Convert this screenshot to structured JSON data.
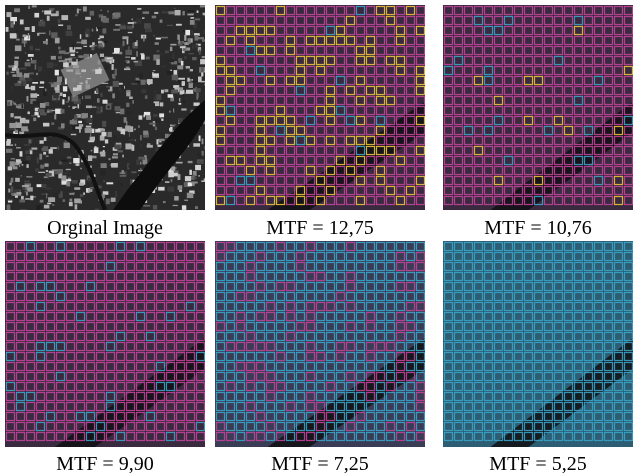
{
  "figure": {
    "panels": [
      {
        "id": "original",
        "caption": "Orginal Image",
        "kind": "satellite-photo"
      },
      {
        "id": "mtf-12-75",
        "caption": "MTF = 12,75",
        "kind": "grid-overlay",
        "palette": {
          "hot": "#e8c23a",
          "mid": "#c2429a",
          "cool": "#3aa3c8"
        },
        "mix": {
          "hot": 0.3,
          "cool": 0.05
        }
      },
      {
        "id": "mtf-10-76",
        "caption": "MTF = 10,76",
        "kind": "grid-overlay",
        "palette": {
          "hot": "#e8c23a",
          "mid": "#c2429a",
          "cool": "#3aa3c8"
        },
        "mix": {
          "hot": 0.06,
          "cool": 0.05
        }
      },
      {
        "id": "mtf-9-90",
        "caption": "MTF = 9,90",
        "kind": "grid-overlay",
        "palette": {
          "hot": "#e8c23a",
          "mid": "#c2429a",
          "cool": "#3aa3c8"
        },
        "mix": {
          "hot": 0.0,
          "cool": 0.12
        }
      },
      {
        "id": "mtf-7-25",
        "caption": "MTF = 7,25",
        "kind": "grid-overlay",
        "palette": {
          "hot": "#e8c23a",
          "mid": "#c2429a",
          "cool": "#3aa3c8"
        },
        "mix": {
          "hot": 0.0,
          "cool": 0.72
        }
      },
      {
        "id": "mtf-5-25",
        "caption": "MTF = 5,25",
        "kind": "grid-overlay",
        "palette": {
          "hot": "#e8c23a",
          "mid": "#c2429a",
          "cool": "#3aa3c8"
        },
        "mix": {
          "hot": 0.0,
          "cool": 1.0
        }
      }
    ]
  }
}
